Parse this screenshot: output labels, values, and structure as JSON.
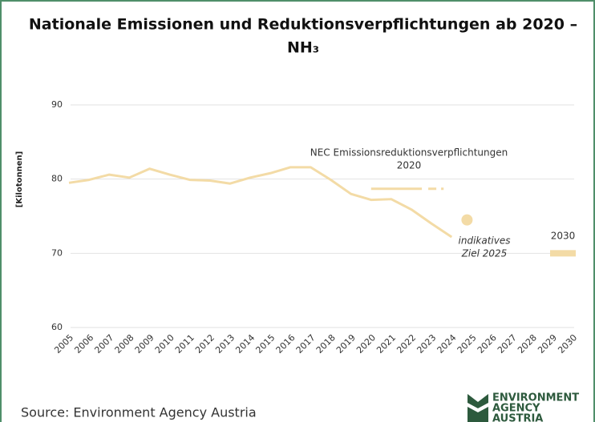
{
  "chart_data": {
    "type": "line",
    "title": [
      "Nationale Emissionen und Reduktionsverpflichtungen ab 2020 –",
      "NH₃"
    ],
    "y_label": "[Kilotonnen]",
    "x": [
      2005,
      2006,
      2007,
      2008,
      2009,
      2010,
      2011,
      2012,
      2013,
      2014,
      2015,
      2016,
      2017,
      2018,
      2019,
      2020,
      2021,
      2022,
      2023,
      2024
    ],
    "series": [
      {
        "color": "#f3dba6",
        "values": [
          79.5,
          79.9,
          80.6,
          80.2,
          81.4,
          80.6,
          79.9,
          79.8,
          79.4,
          80.2,
          80.8,
          81.6,
          81.6,
          79.9,
          78.0,
          77.2,
          77.3,
          75.9,
          74.0,
          72.2
        ]
      }
    ],
    "xlim": [
      2005,
      2030
    ],
    "xticks": [
      2005,
      2006,
      2007,
      2008,
      2009,
      2010,
      2011,
      2012,
      2013,
      2014,
      2015,
      2016,
      2017,
      2018,
      2019,
      2020,
      2021,
      2022,
      2023,
      2024,
      2025,
      2026,
      2027,
      2028,
      2029,
      2030
    ],
    "ylim": [
      60,
      90
    ],
    "yticks": [
      60,
      70,
      80,
      90
    ],
    "grid": true,
    "nec_commitment": {
      "label": [
        "NEC Emissionsreduktionsverpflichtungen",
        "2020"
      ],
      "x": [
        2020,
        2023.6
      ],
      "value": 78.7
    },
    "target_2025": {
      "label": [
        "indikatives",
        "Ziel 2025"
      ],
      "x": 2025,
      "value": 74.5
    },
    "target_2030": {
      "label": "2030",
      "x": 2030,
      "value": 70
    },
    "source": "Source:  Environment Agency Austria",
    "logo": [
      "ENVIRONMENT",
      "AGENCY",
      "AUSTRIA"
    ]
  }
}
